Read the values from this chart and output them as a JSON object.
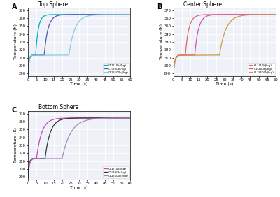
{
  "title_A": "Top Sphere",
  "title_B": "Center Sphere",
  "title_C": "Bottom Sphere",
  "xlabel": "Time (s)",
  "ylabel": "Temperature (K)",
  "xlim": [
    0,
    60
  ],
  "ylim": [
    287,
    373
  ],
  "yticks": [
    290,
    300,
    310,
    320,
    330,
    340,
    350,
    360,
    370
  ],
  "xticks": [
    0,
    5,
    10,
    15,
    20,
    25,
    30,
    35,
    40,
    45,
    50,
    55,
    60
  ],
  "legend_labels_A": [
    "CL1(10kJ/kg)",
    "C1(200kJ/kg)",
    "CL2(500kJ/kg)"
  ],
  "legend_labels_B": [
    "CL1(10kJ/kg)",
    "C1(200kJ/kg)",
    "CL2(500kJ/kg)"
  ],
  "legend_labels_C": [
    "CL1(10kJ/kg)",
    "C1(200kJ/kg)",
    "CL2(500kJ/kg)"
  ],
  "colors_A": [
    "#00AACC",
    "#5555AA",
    "#88CCDD"
  ],
  "colors_B": [
    "#DD6666",
    "#CC55AA",
    "#CC9944"
  ],
  "colors_C": [
    "#CC44BB",
    "#333333",
    "#AA88BB"
  ],
  "label_A": "A",
  "label_B": "B",
  "label_C": "C",
  "bg_color": "#eef2f8"
}
